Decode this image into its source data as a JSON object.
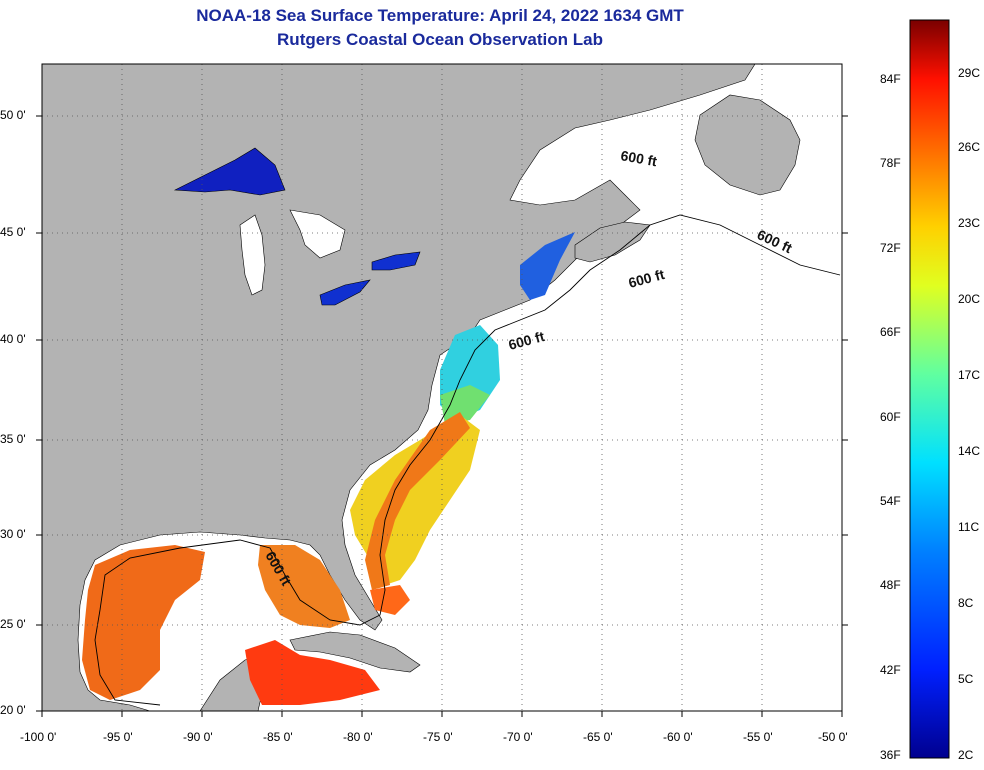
{
  "title_line1": "NOAA-18 Sea Surface Temperature:  April 24, 2022 1634 GMT",
  "title_line2": "Rutgers Coastal Ocean Observation Lab",
  "lat_labels": [
    "50 0'",
    "45 0'",
    "40 0'",
    "35 0'",
    "30 0'",
    "25 0'",
    "20 0'"
  ],
  "lon_labels": [
    "-100 0'",
    "-95 0'",
    "-90 0'",
    "-85 0'",
    "-80 0'",
    "-75 0'",
    "-70 0'",
    "-65 0'",
    "-60 0'",
    "-55 0'",
    "-50 0'"
  ],
  "contour_label": "600 ft",
  "colorbar": {
    "fahrenheit": [
      "84F",
      "78F",
      "72F",
      "66F",
      "60F",
      "54F",
      "48F",
      "42F",
      "36F"
    ],
    "celsius": [
      "29C",
      "26C",
      "23C",
      "20C",
      "17C",
      "14C",
      "11C",
      "8C",
      "5C",
      "2C"
    ]
  },
  "colors": {
    "land": "#b3b3b3",
    "ocean": "#ffffff",
    "title": "#1a2a9c"
  }
}
